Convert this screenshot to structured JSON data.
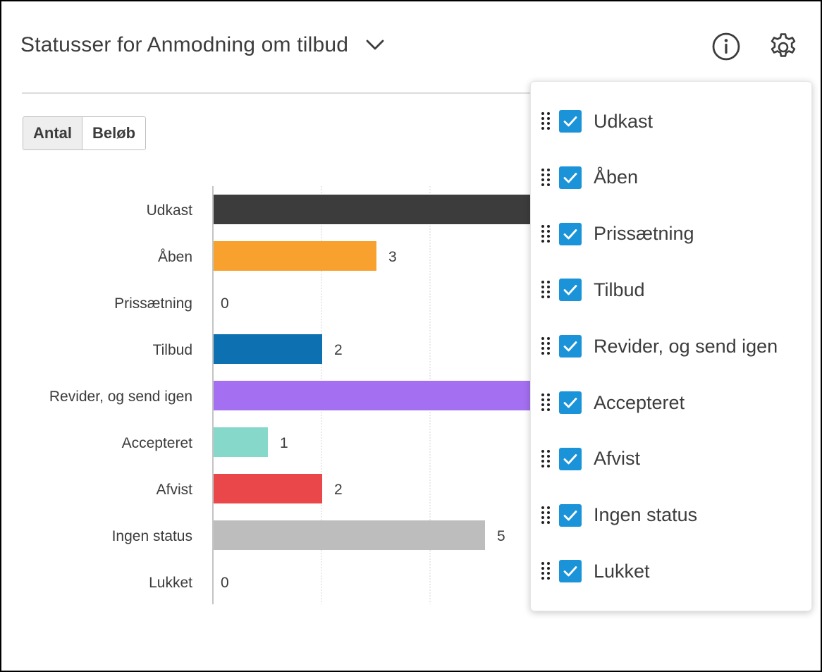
{
  "header": {
    "title": "Statusser for Anmodning om tilbud",
    "caret_icon": "chevron-down-icon",
    "info_icon": "info-icon",
    "settings_icon": "gear-icon"
  },
  "toggle": {
    "options": [
      "Antal",
      "Beløb"
    ],
    "active": "Antal"
  },
  "chart_data": {
    "type": "bar",
    "orientation": "horizontal",
    "categories": [
      "Udkast",
      "Åben",
      "Prissætning",
      "Tilbud",
      "Revider, og send igen",
      "Accepteret",
      "Afvist",
      "Ingen status",
      "Lukket"
    ],
    "values": [
      null,
      3,
      0,
      2,
      null,
      1,
      2,
      5,
      0
    ],
    "data_labels": [
      "",
      "3",
      "0",
      "2",
      "",
      "1",
      "2",
      "5",
      "0"
    ],
    "min_visible_values": {
      "Udkast": 6,
      "Revider, og send igen": 6
    },
    "colors": [
      "#3c3c3c",
      "#f8a12e",
      "#cccccc",
      "#0d70b0",
      "#a46ff0",
      "#86d8cb",
      "#e9474a",
      "#bdbdbd",
      "#cccccc"
    ],
    "grid": true,
    "title": "",
    "xlabel": "",
    "ylabel": ""
  },
  "popover": {
    "items": [
      {
        "label": "Udkast",
        "checked": true
      },
      {
        "label": "Åben",
        "checked": true
      },
      {
        "label": "Prissætning",
        "checked": true
      },
      {
        "label": "Tilbud",
        "checked": true
      },
      {
        "label": "Revider, og send igen",
        "checked": true
      },
      {
        "label": "Accepteret",
        "checked": true
      },
      {
        "label": "Afvist",
        "checked": true
      },
      {
        "label": "Ingen status",
        "checked": true
      },
      {
        "label": "Lukket",
        "checked": true
      }
    ],
    "accent": "#1b93d8"
  }
}
